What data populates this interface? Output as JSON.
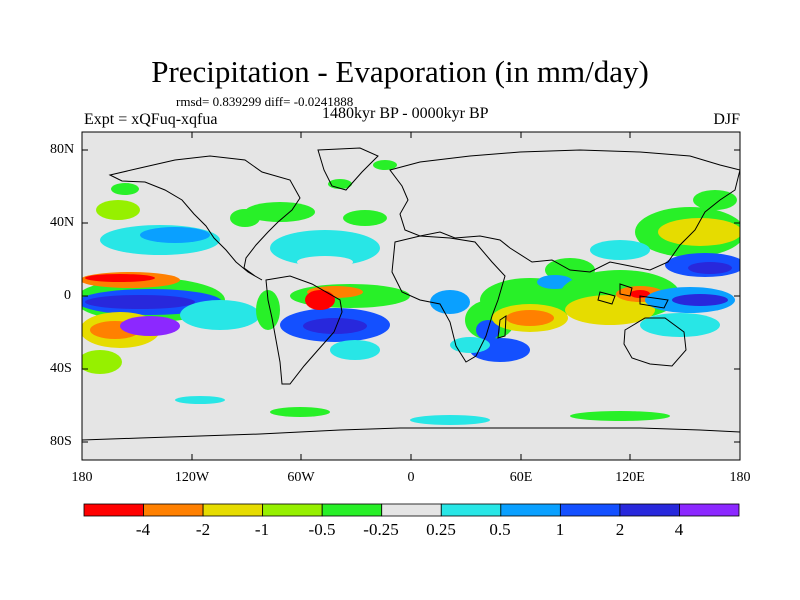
{
  "map": {
    "title": "Precipitation - Evaporation (in mm/day)",
    "stats": "rmsd= 0.839299 diff= -0.0241888",
    "experiment": "Expt = xQFuq-xqfua",
    "period": "1480kyr BP - 0000kyr BP",
    "season": "DJF",
    "background_color": "#e5e5e5",
    "lat_labels": [
      "80N",
      "40N",
      "0",
      "40S",
      "80S"
    ],
    "lon_labels": [
      "180",
      "120W",
      "60W",
      "0",
      "60E",
      "120E",
      "180"
    ]
  },
  "colorbar": {
    "colors": [
      "#ff0000",
      "#ff8000",
      "#e6dc00",
      "#96f000",
      "#28f028",
      "#e5e5e5",
      "#28e6e6",
      "#0aa0ff",
      "#1450ff",
      "#2828dc",
      "#8c28ff"
    ],
    "labels": [
      "-4",
      "-2",
      "-1",
      "-0.5",
      "-0.25",
      "0.25",
      "0.5",
      "1",
      "2",
      "4"
    ]
  }
}
